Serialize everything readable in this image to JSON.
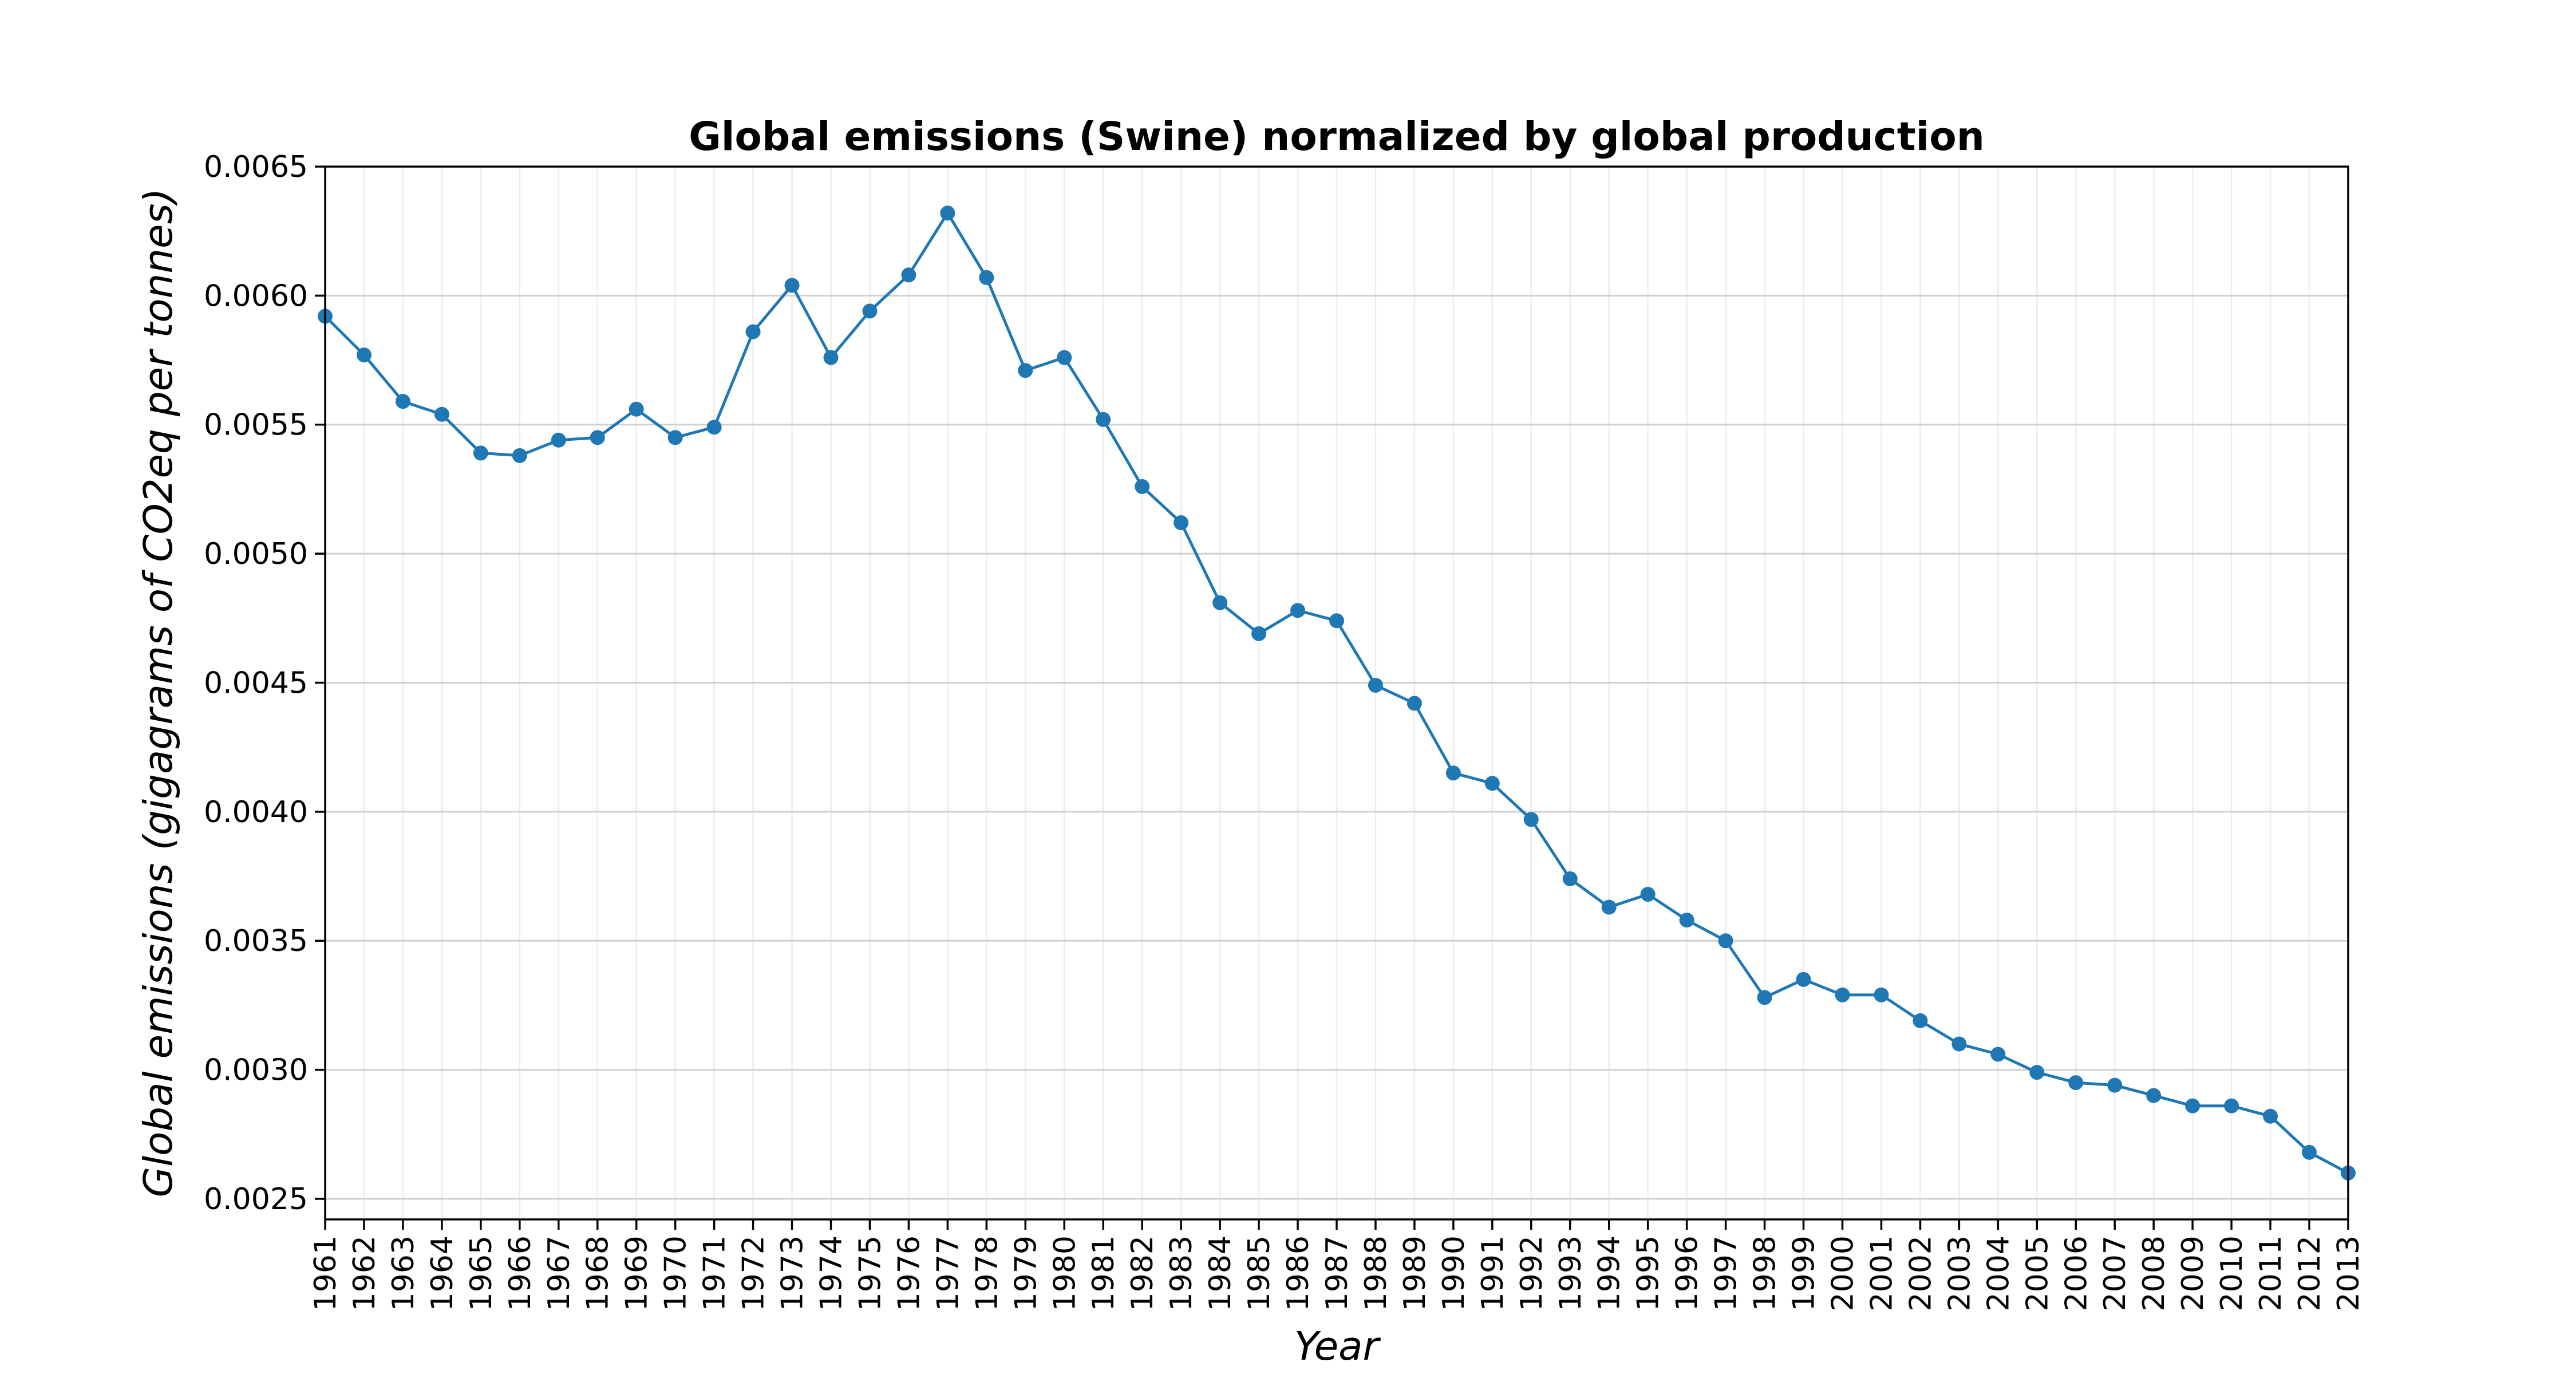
{
  "chart_data": {
    "type": "line",
    "title": "Global emissions (Swine) normalized by global production",
    "xlabel": "Year",
    "ylabel": "Global emissions (gigagrams of CO2eq per tonnes)",
    "ylim": [
      0.00242,
      0.0065
    ],
    "yticks": [
      0.0025,
      0.003,
      0.0035,
      0.004,
      0.0045,
      0.005,
      0.0055,
      0.006,
      0.0065
    ],
    "ytick_labels": [
      "0.0025",
      "0.0030",
      "0.0035",
      "0.0040",
      "0.0045",
      "0.0050",
      "0.0055",
      "0.0060",
      "0.0065"
    ],
    "grid": true,
    "series_color": "#1f77b4",
    "marker": "circle",
    "x": [
      "1961",
      "1962",
      "1963",
      "1964",
      "1965",
      "1966",
      "1967",
      "1968",
      "1969",
      "1970",
      "1971",
      "1972",
      "1973",
      "1974",
      "1975",
      "1976",
      "1977",
      "1978",
      "1979",
      "1980",
      "1981",
      "1982",
      "1983",
      "1984",
      "1985",
      "1986",
      "1987",
      "1988",
      "1989",
      "1990",
      "1991",
      "1992",
      "1993",
      "1994",
      "1995",
      "1996",
      "1997",
      "1998",
      "1999",
      "2000",
      "2001",
      "2002",
      "2003",
      "2004",
      "2005",
      "2006",
      "2007",
      "2008",
      "2009",
      "2010",
      "2011",
      "2012",
      "2013"
    ],
    "series": [
      {
        "values": [
          0.00592,
          0.00577,
          0.00559,
          0.00554,
          0.00539,
          0.00538,
          0.00544,
          0.00545,
          0.00556,
          0.00545,
          0.00549,
          0.00586,
          0.00604,
          0.00576,
          0.00594,
          0.00608,
          0.00632,
          0.00607,
          0.00571,
          0.00576,
          0.00552,
          0.00526,
          0.00512,
          0.00481,
          0.00469,
          0.00478,
          0.00474,
          0.00449,
          0.00442,
          0.00415,
          0.00411,
          0.00397,
          0.00374,
          0.00363,
          0.00368,
          0.00358,
          0.0035,
          0.00328,
          0.00335,
          0.00329,
          0.00329,
          0.00319,
          0.0031,
          0.00306,
          0.00299,
          0.00295,
          0.00294,
          0.0029,
          0.00286,
          0.00286,
          0.00282,
          0.00268,
          0.0026
        ]
      }
    ]
  }
}
